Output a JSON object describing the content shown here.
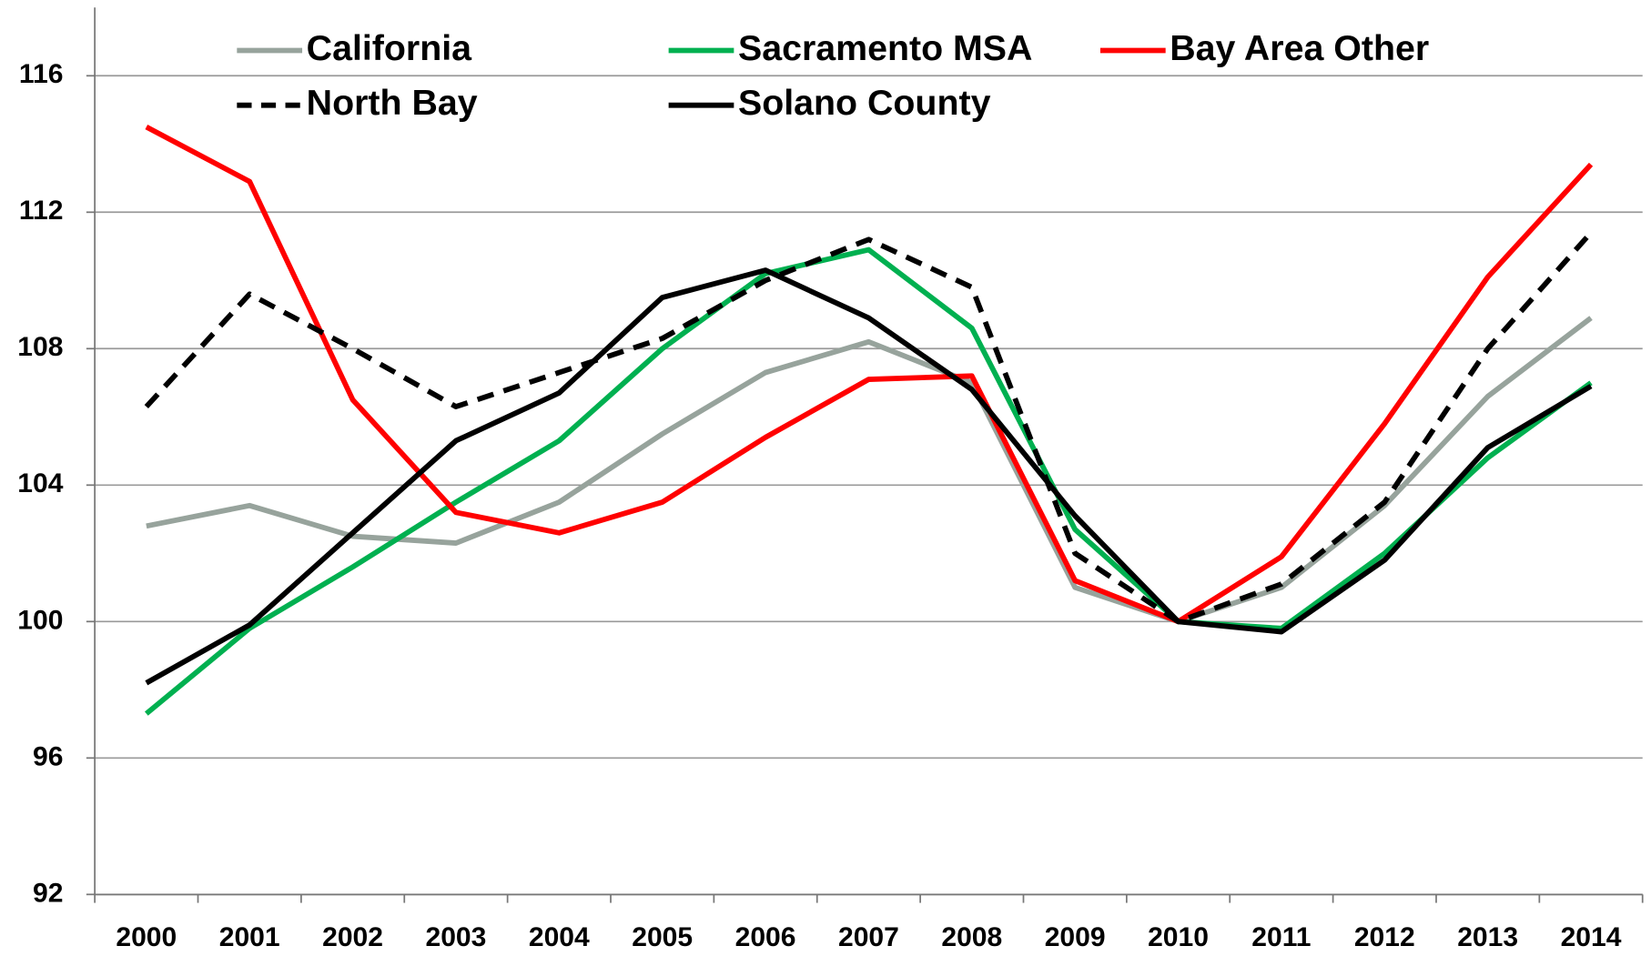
{
  "chart_data": {
    "type": "line",
    "categories": [
      "2000",
      "2001",
      "2002",
      "2003",
      "2004",
      "2005",
      "2006",
      "2007",
      "2008",
      "2009",
      "2010",
      "2011",
      "2012",
      "2013",
      "2014"
    ],
    "series": [
      {
        "name": "California",
        "color": "#97a39c",
        "values": [
          102.8,
          103.4,
          102.5,
          102.3,
          103.5,
          105.5,
          107.3,
          108.2,
          107.0,
          101.0,
          100,
          101.0,
          103.4,
          106.6,
          108.9
        ]
      },
      {
        "name": "Sacramento MSA",
        "color": "#00b050",
        "values": [
          97.3,
          99.8,
          101.6,
          103.5,
          105.3,
          108.0,
          110.2,
          110.9,
          108.6,
          102.7,
          100,
          99.8,
          102.0,
          104.8,
          107.0
        ]
      },
      {
        "name": "Bay Area Other",
        "color": "#ff0000",
        "values": [
          114.5,
          112.9,
          106.5,
          103.2,
          102.6,
          103.5,
          105.4,
          107.1,
          107.2,
          101.2,
          100,
          101.9,
          105.8,
          110.1,
          113.4
        ]
      },
      {
        "name": "North Bay",
        "color": "#000000",
        "dashed": true,
        "values": [
          106.3,
          109.6,
          108.0,
          106.3,
          107.3,
          108.3,
          110.0,
          111.2,
          109.8,
          102.0,
          100,
          101.1,
          103.5,
          108.0,
          111.4
        ]
      },
      {
        "name": "Solano County",
        "color": "#000000",
        "values": [
          98.2,
          99.9,
          102.6,
          105.3,
          106.7,
          109.5,
          110.3,
          108.9,
          106.8,
          103.1,
          100,
          99.7,
          101.8,
          105.1,
          106.9
        ]
      }
    ],
    "ylim": [
      92,
      118
    ],
    "yticks": [
      92,
      96,
      100,
      104,
      108,
      112,
      116
    ],
    "grid": true
  }
}
